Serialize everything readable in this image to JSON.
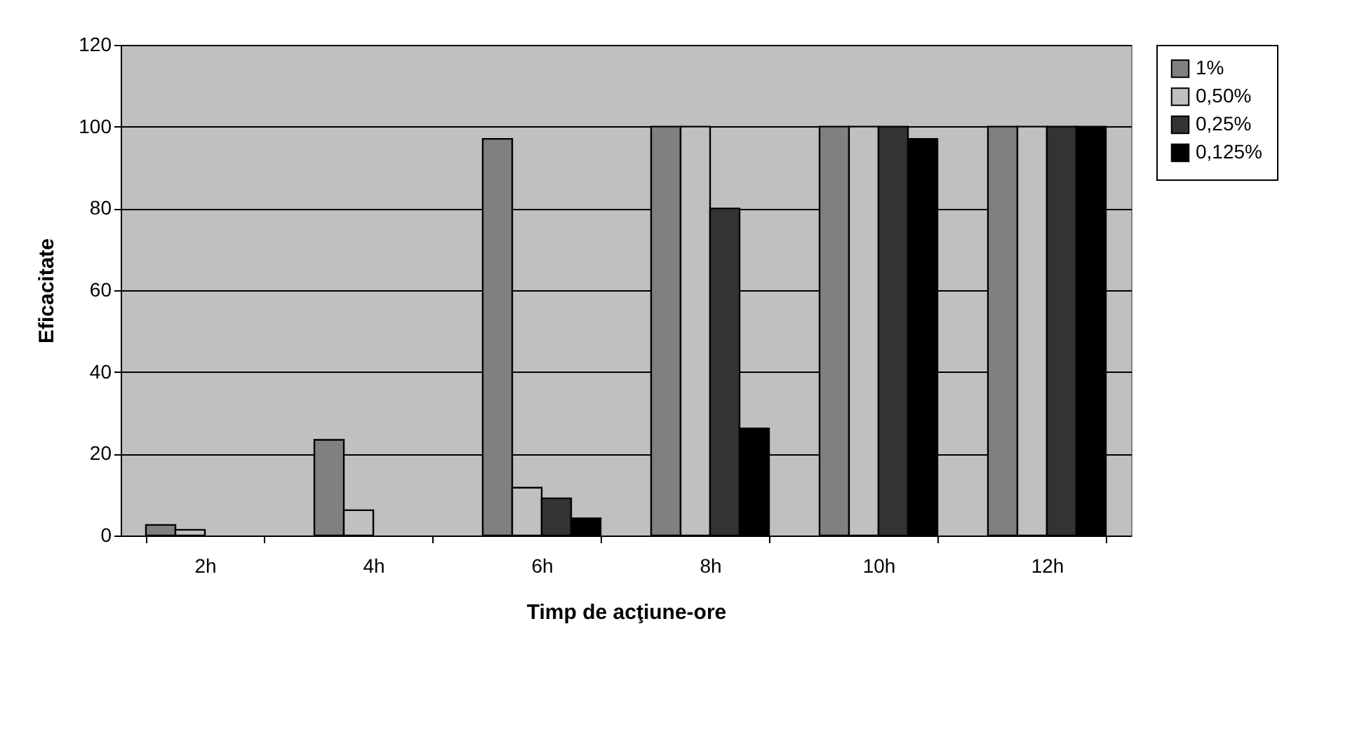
{
  "chart_data": {
    "type": "bar",
    "xlabel": "Timp de acţiune-ore",
    "ylabel": "Eficacitate",
    "categories": [
      "2h",
      "4h",
      "6h",
      "8h",
      "10h",
      "12h"
    ],
    "series": [
      {
        "name": "1%",
        "color": "#808080",
        "values": [
          2.6,
          23.4,
          97,
          100,
          100,
          100
        ]
      },
      {
        "name": "0,50%",
        "color": "#c0c0c0",
        "values": [
          1.4,
          6.2,
          11.7,
          100,
          100,
          100
        ]
      },
      {
        "name": "0,25%",
        "color": "#333333",
        "values": [
          null,
          null,
          9.1,
          80,
          100,
          100
        ]
      },
      {
        "name": "0,125%",
        "color": "#000000",
        "values": [
          null,
          null,
          4.2,
          26.2,
          97,
          100
        ]
      }
    ],
    "ylim": [
      0,
      120
    ],
    "yticks": [
      0,
      20,
      40,
      60,
      80,
      100,
      120
    ],
    "grid": "y",
    "legend": "right"
  }
}
